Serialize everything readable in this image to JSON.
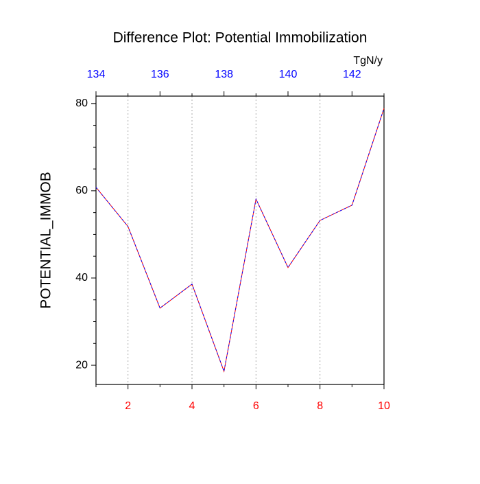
{
  "chart_data": {
    "type": "line",
    "title": "Difference Plot: Potential Immobilization",
    "y_label": "POTENTIAL_IMMOB",
    "x2_label": "TgN/y",
    "x": [
      1,
      2,
      3,
      4,
      5,
      6,
      7,
      8,
      9,
      10
    ],
    "series": [
      {
        "color": "#ff0000",
        "values": [
          60.8,
          51.8,
          33.1,
          38.6,
          18.6,
          58.1,
          42.4,
          53.2,
          56.7,
          78.9
        ]
      }
    ],
    "overlay_dash_color": "#0000ff",
    "xlim": [
      1,
      10
    ],
    "xticks": [
      2,
      4,
      6,
      8,
      10
    ],
    "xminorticks": [
      1,
      3,
      5,
      7,
      9
    ],
    "xtick_color": "#ff0000",
    "x2lim": [
      134,
      143
    ],
    "x2ticks": [
      134,
      136,
      138,
      140,
      142
    ],
    "x2minorticks": [
      135,
      137,
      139,
      141,
      143
    ],
    "x2tick_color": "#0000ff",
    "ylim": [
      15.6,
      81.7
    ],
    "yticks": [
      20,
      40,
      60,
      80
    ],
    "yminorticks": [
      25,
      30,
      35,
      45,
      50,
      55,
      65,
      70,
      75
    ],
    "grid": true
  }
}
